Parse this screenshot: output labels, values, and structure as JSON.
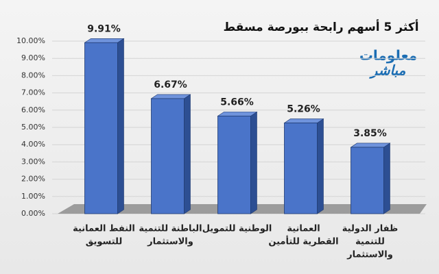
{
  "chart_data": {
    "type": "bar3d",
    "title": "أكثر 5 أسهم رابحة ببورصة مسقط",
    "logo": [
      "معلومات",
      "مباشر"
    ],
    "categories": [
      [
        "النفط العمانية",
        "للتسويق"
      ],
      [
        "الباطنة للتنمية",
        "والاستثمار"
      ],
      [
        "الوطنية للتمويل"
      ],
      [
        "العمانية",
        "القطرية للتأمين"
      ],
      [
        "ظفار الدولية",
        "للتنمية",
        "والاستثمار"
      ]
    ],
    "values": [
      9.91,
      6.67,
      5.66,
      5.26,
      3.85
    ],
    "value_labels": [
      "9.91%",
      "6.67%",
      "5.66%",
      "5.26%",
      "3.85%"
    ],
    "color": "#4a74c9",
    "ylim": [
      0,
      10
    ],
    "yticks": [
      {
        "value": 0,
        "label": "0.00%"
      },
      {
        "value": 1,
        "label": "1.00%"
      },
      {
        "value": 2,
        "label": "2.00%"
      },
      {
        "value": 3,
        "label": "3.00%"
      },
      {
        "value": 4,
        "label": "4.00%"
      },
      {
        "value": 5,
        "label": "5.00%"
      },
      {
        "value": 6,
        "label": "6.00%"
      },
      {
        "value": 7,
        "label": "7.00%"
      },
      {
        "value": 8,
        "label": "8.00%"
      },
      {
        "value": 9,
        "label": "9.00%"
      },
      {
        "value": 10,
        "label": "10.00%"
      }
    ],
    "grid": true
  }
}
